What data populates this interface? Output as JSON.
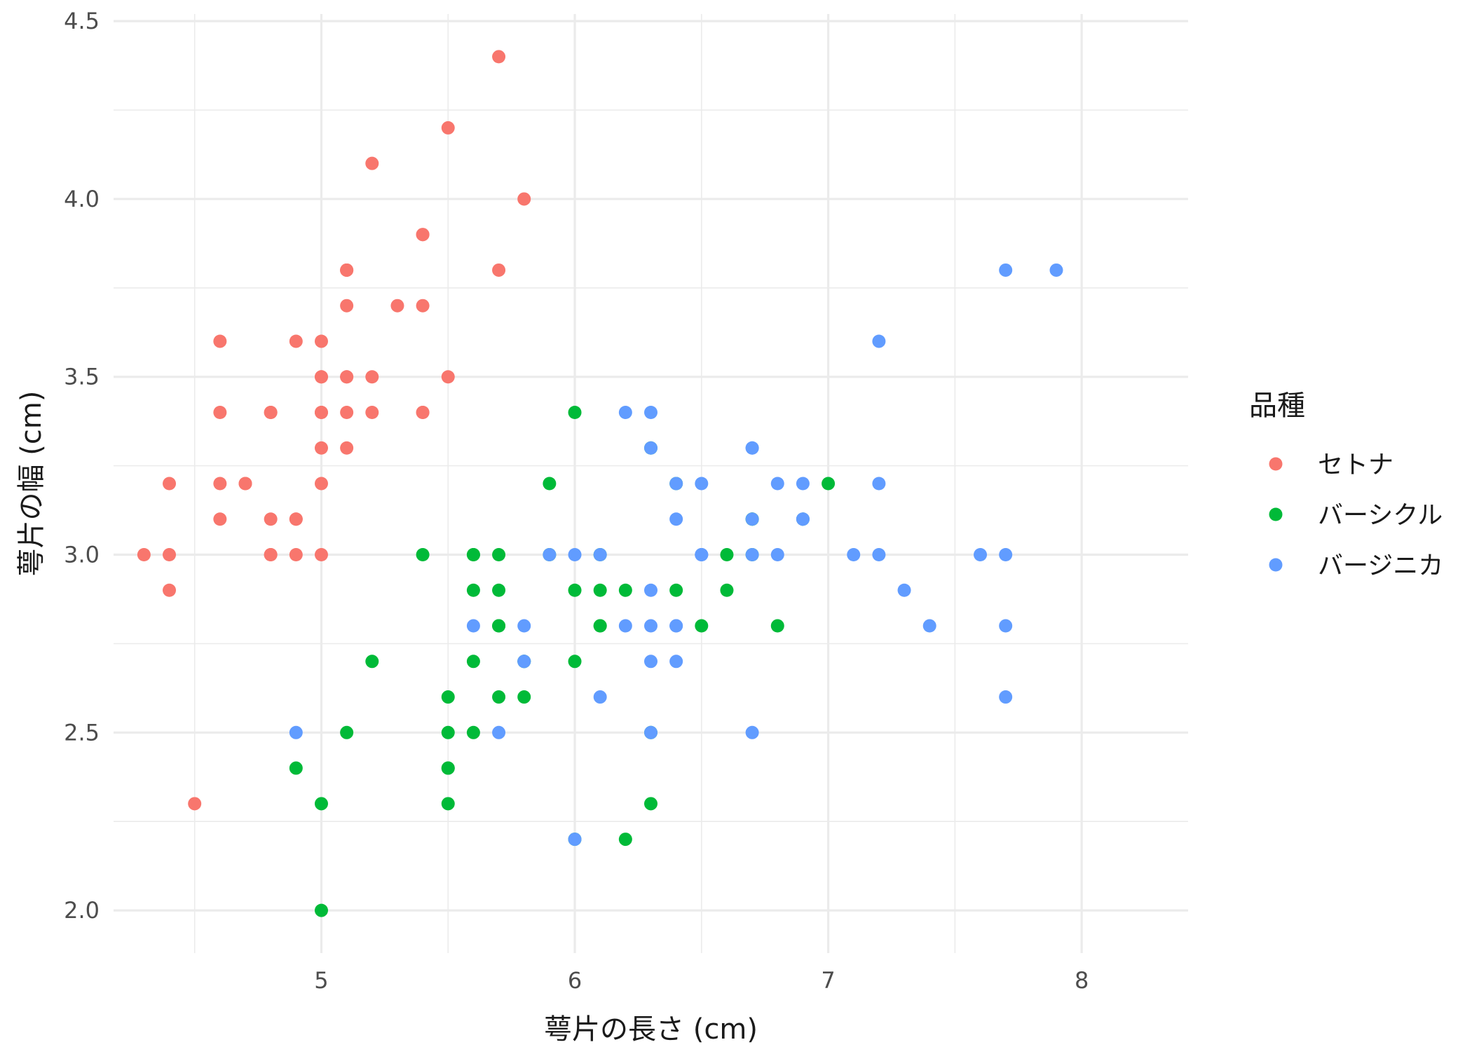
{
  "chart_data": {
    "type": "scatter",
    "xlabel": "萼片の長さ (cm)",
    "ylabel": "萼片の幅 (cm)",
    "xlim": [
      4.18,
      8.42
    ],
    "ylim": [
      1.88,
      4.52
    ],
    "x_ticks": [
      5,
      6,
      7,
      8
    ],
    "x_tick_labels": [
      "5",
      "6",
      "7",
      "8"
    ],
    "y_ticks": [
      2.0,
      2.5,
      3.0,
      3.5,
      4.0,
      4.5
    ],
    "y_tick_labels": [
      "2.0",
      "2.5",
      "3.0",
      "3.5",
      "4.0",
      "4.5"
    ],
    "grid": true,
    "legend": {
      "title": "品種",
      "position": "right"
    },
    "series": [
      {
        "name": "セトナ",
        "color": "#F8766D",
        "points": [
          [
            5.1,
            3.5
          ],
          [
            4.9,
            3.0
          ],
          [
            4.7,
            3.2
          ],
          [
            4.6,
            3.1
          ],
          [
            5.0,
            3.6
          ],
          [
            5.4,
            3.9
          ],
          [
            4.6,
            3.4
          ],
          [
            5.0,
            3.4
          ],
          [
            4.4,
            2.9
          ],
          [
            4.9,
            3.1
          ],
          [
            5.4,
            3.7
          ],
          [
            4.8,
            3.4
          ],
          [
            4.8,
            3.0
          ],
          [
            4.3,
            3.0
          ],
          [
            5.8,
            4.0
          ],
          [
            5.7,
            4.4
          ],
          [
            5.4,
            3.9
          ],
          [
            5.1,
            3.5
          ],
          [
            5.7,
            3.8
          ],
          [
            5.1,
            3.8
          ],
          [
            5.4,
            3.4
          ],
          [
            5.1,
            3.7
          ],
          [
            4.6,
            3.6
          ],
          [
            5.1,
            3.3
          ],
          [
            4.8,
            3.4
          ],
          [
            5.0,
            3.0
          ],
          [
            5.0,
            3.4
          ],
          [
            5.2,
            3.5
          ],
          [
            5.2,
            3.4
          ],
          [
            4.7,
            3.2
          ],
          [
            4.8,
            3.1
          ],
          [
            5.4,
            3.4
          ],
          [
            5.2,
            4.1
          ],
          [
            5.5,
            4.2
          ],
          [
            4.9,
            3.1
          ],
          [
            5.0,
            3.2
          ],
          [
            5.5,
            3.5
          ],
          [
            4.9,
            3.6
          ],
          [
            4.4,
            3.0
          ],
          [
            5.1,
            3.4
          ],
          [
            5.0,
            3.5
          ],
          [
            4.5,
            2.3
          ],
          [
            4.4,
            3.2
          ],
          [
            5.0,
            3.5
          ],
          [
            5.1,
            3.8
          ],
          [
            4.8,
            3.0
          ],
          [
            5.1,
            3.8
          ],
          [
            4.6,
            3.2
          ],
          [
            5.3,
            3.7
          ],
          [
            5.0,
            3.3
          ]
        ]
      },
      {
        "name": "バーシクル",
        "color": "#00BA38",
        "points": [
          [
            7.0,
            3.2
          ],
          [
            6.4,
            3.2
          ],
          [
            6.9,
            3.1
          ],
          [
            5.5,
            2.3
          ],
          [
            6.5,
            2.8
          ],
          [
            5.7,
            2.8
          ],
          [
            6.3,
            3.3
          ],
          [
            4.9,
            2.4
          ],
          [
            6.6,
            2.9
          ],
          [
            5.2,
            2.7
          ],
          [
            5.0,
            2.0
          ],
          [
            5.9,
            3.0
          ],
          [
            6.0,
            2.2
          ],
          [
            6.1,
            2.9
          ],
          [
            5.6,
            2.9
          ],
          [
            6.7,
            3.1
          ],
          [
            5.6,
            3.0
          ],
          [
            5.8,
            2.7
          ],
          [
            6.2,
            2.2
          ],
          [
            5.6,
            2.5
          ],
          [
            5.9,
            3.2
          ],
          [
            6.1,
            2.8
          ],
          [
            6.3,
            2.5
          ],
          [
            6.1,
            2.8
          ],
          [
            6.4,
            2.9
          ],
          [
            6.6,
            3.0
          ],
          [
            6.8,
            2.8
          ],
          [
            6.7,
            3.0
          ],
          [
            6.0,
            2.9
          ],
          [
            5.7,
            2.6
          ],
          [
            5.5,
            2.4
          ],
          [
            5.5,
            2.4
          ],
          [
            5.8,
            2.7
          ],
          [
            6.0,
            2.7
          ],
          [
            5.4,
            3.0
          ],
          [
            6.0,
            3.4
          ],
          [
            6.7,
            3.1
          ],
          [
            6.3,
            2.3
          ],
          [
            5.6,
            3.0
          ],
          [
            5.5,
            2.5
          ],
          [
            5.5,
            2.6
          ],
          [
            6.1,
            3.0
          ],
          [
            5.8,
            2.6
          ],
          [
            5.0,
            2.3
          ],
          [
            5.6,
            2.7
          ],
          [
            5.7,
            3.0
          ],
          [
            5.7,
            2.9
          ],
          [
            6.2,
            2.9
          ],
          [
            5.1,
            2.5
          ],
          [
            5.7,
            2.8
          ]
        ]
      },
      {
        "name": "バージニカ",
        "color": "#619CFF",
        "points": [
          [
            6.3,
            3.3
          ],
          [
            5.8,
            2.7
          ],
          [
            7.1,
            3.0
          ],
          [
            6.3,
            2.9
          ],
          [
            6.5,
            3.0
          ],
          [
            7.6,
            3.0
          ],
          [
            4.9,
            2.5
          ],
          [
            7.3,
            2.9
          ],
          [
            6.7,
            2.5
          ],
          [
            7.2,
            3.6
          ],
          [
            6.5,
            3.2
          ],
          [
            6.4,
            2.7
          ],
          [
            6.8,
            3.0
          ],
          [
            5.7,
            2.5
          ],
          [
            5.8,
            2.8
          ],
          [
            6.4,
            3.2
          ],
          [
            6.5,
            3.0
          ],
          [
            7.7,
            3.8
          ],
          [
            7.7,
            2.6
          ],
          [
            6.0,
            2.2
          ],
          [
            6.9,
            3.2
          ],
          [
            5.6,
            2.8
          ],
          [
            7.7,
            2.8
          ],
          [
            6.3,
            2.7
          ],
          [
            6.7,
            3.3
          ],
          [
            7.2,
            3.2
          ],
          [
            6.2,
            2.8
          ],
          [
            6.1,
            3.0
          ],
          [
            6.4,
            2.8
          ],
          [
            7.2,
            3.0
          ],
          [
            7.4,
            2.8
          ],
          [
            7.9,
            3.8
          ],
          [
            6.4,
            2.8
          ],
          [
            6.3,
            2.8
          ],
          [
            6.1,
            2.6
          ],
          [
            7.7,
            3.0
          ],
          [
            6.3,
            3.4
          ],
          [
            6.4,
            3.1
          ],
          [
            6.0,
            3.0
          ],
          [
            6.9,
            3.1
          ],
          [
            6.7,
            3.1
          ],
          [
            6.9,
            3.1
          ],
          [
            5.8,
            2.7
          ],
          [
            6.8,
            3.2
          ],
          [
            6.7,
            3.3
          ],
          [
            6.7,
            3.0
          ],
          [
            6.3,
            2.5
          ],
          [
            6.5,
            3.0
          ],
          [
            6.2,
            3.4
          ],
          [
            5.9,
            3.0
          ]
        ]
      }
    ]
  }
}
